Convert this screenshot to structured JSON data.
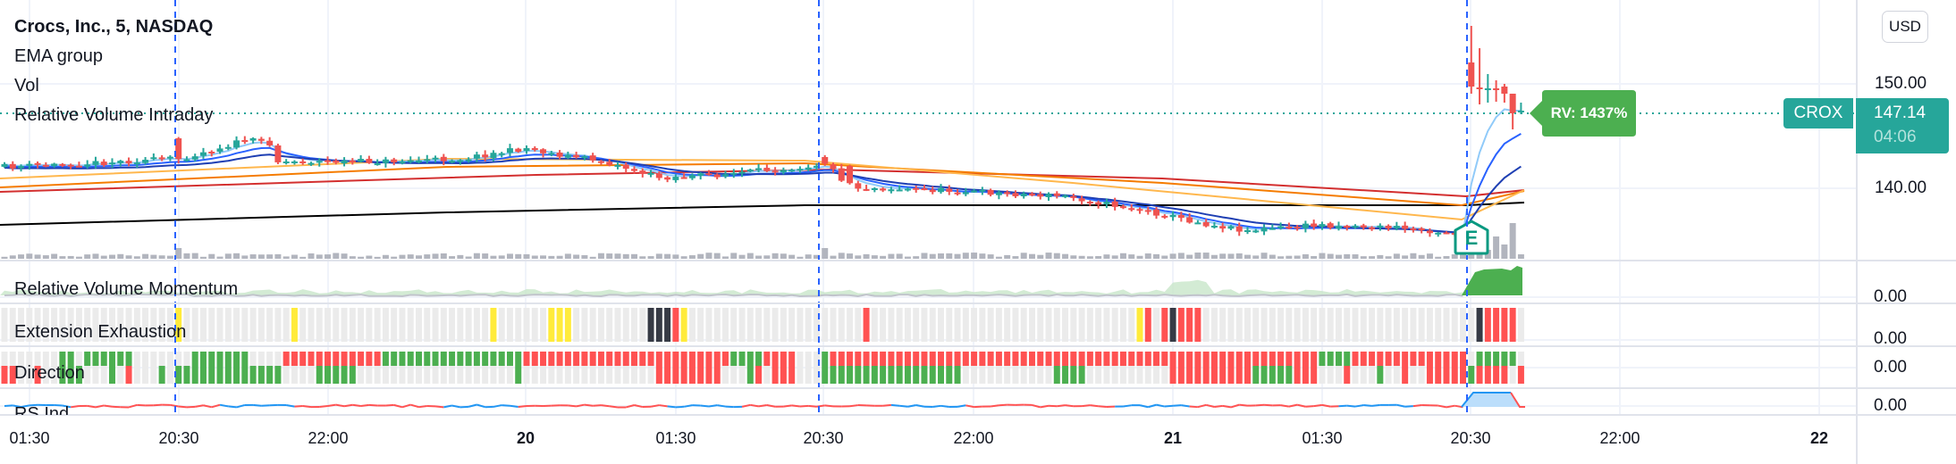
{
  "legend": {
    "symbol": "Crocs, Inc., 5, NASDAQ",
    "indicators": [
      "EMA group",
      "Vol",
      "Relative Volume Intraday"
    ]
  },
  "panes": [
    {
      "label": "Relative Volume Momentum",
      "value": "0.00"
    },
    {
      "label": "Extension Exhaustion",
      "value": "0.00"
    },
    {
      "label": "Direction",
      "value": "0.00"
    },
    {
      "label": "RS Ind",
      "value": "0.00"
    }
  ],
  "price_axis": {
    "currency": "USD",
    "ticks": [
      "150.00",
      "140.00"
    ],
    "last_price": "147.14",
    "countdown": "04:06",
    "symbol_tag": "CROX"
  },
  "time_axis": {
    "ticks": [
      "01:30",
      "20:30",
      "22:00",
      "20",
      "01:30",
      "20:30",
      "22:00",
      "21",
      "01:30",
      "20:30",
      "22:00",
      "22"
    ]
  },
  "rv_label": "RV: 1437%",
  "earnings_marker": "E",
  "colors": {
    "up": "#26a69a",
    "down": "#ef5350",
    "rv_label": "#4caf50",
    "last_price": "#26a69a",
    "session_break": "#2962ff",
    "exhaustion_yellow": "#ffeb3b",
    "exhaustion_black": "#363a45"
  }
}
